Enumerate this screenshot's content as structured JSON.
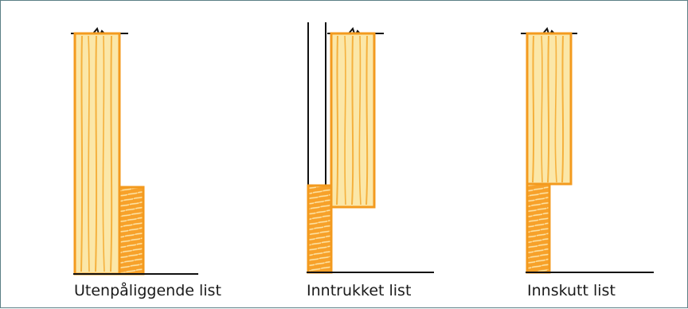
{
  "figure": {
    "panels": [
      {
        "id": "utenpaliggende",
        "caption": "Utenpåliggende list"
      },
      {
        "id": "inntrukket",
        "caption": "Inntrukket list"
      },
      {
        "id": "innskutt",
        "caption": "Innskutt list"
      }
    ]
  },
  "colors": {
    "frame_border": "#5b7f86",
    "wood_fill": "#fbe7a8",
    "wood_outline": "#f39a1e",
    "wood_grain": "#f5b13e",
    "endgrain_fill": "#f7a12a",
    "line": "#111111"
  }
}
